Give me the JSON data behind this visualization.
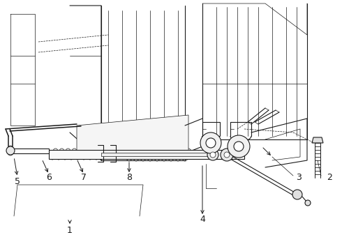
{
  "bg_color": "#ffffff",
  "line_color": "#1a1a1a",
  "fig_width": 4.9,
  "fig_height": 3.6,
  "dpi": 100,
  "label_fontsize": 9,
  "lw_thin": 0.5,
  "lw_med": 0.8,
  "lw_thick": 1.1
}
